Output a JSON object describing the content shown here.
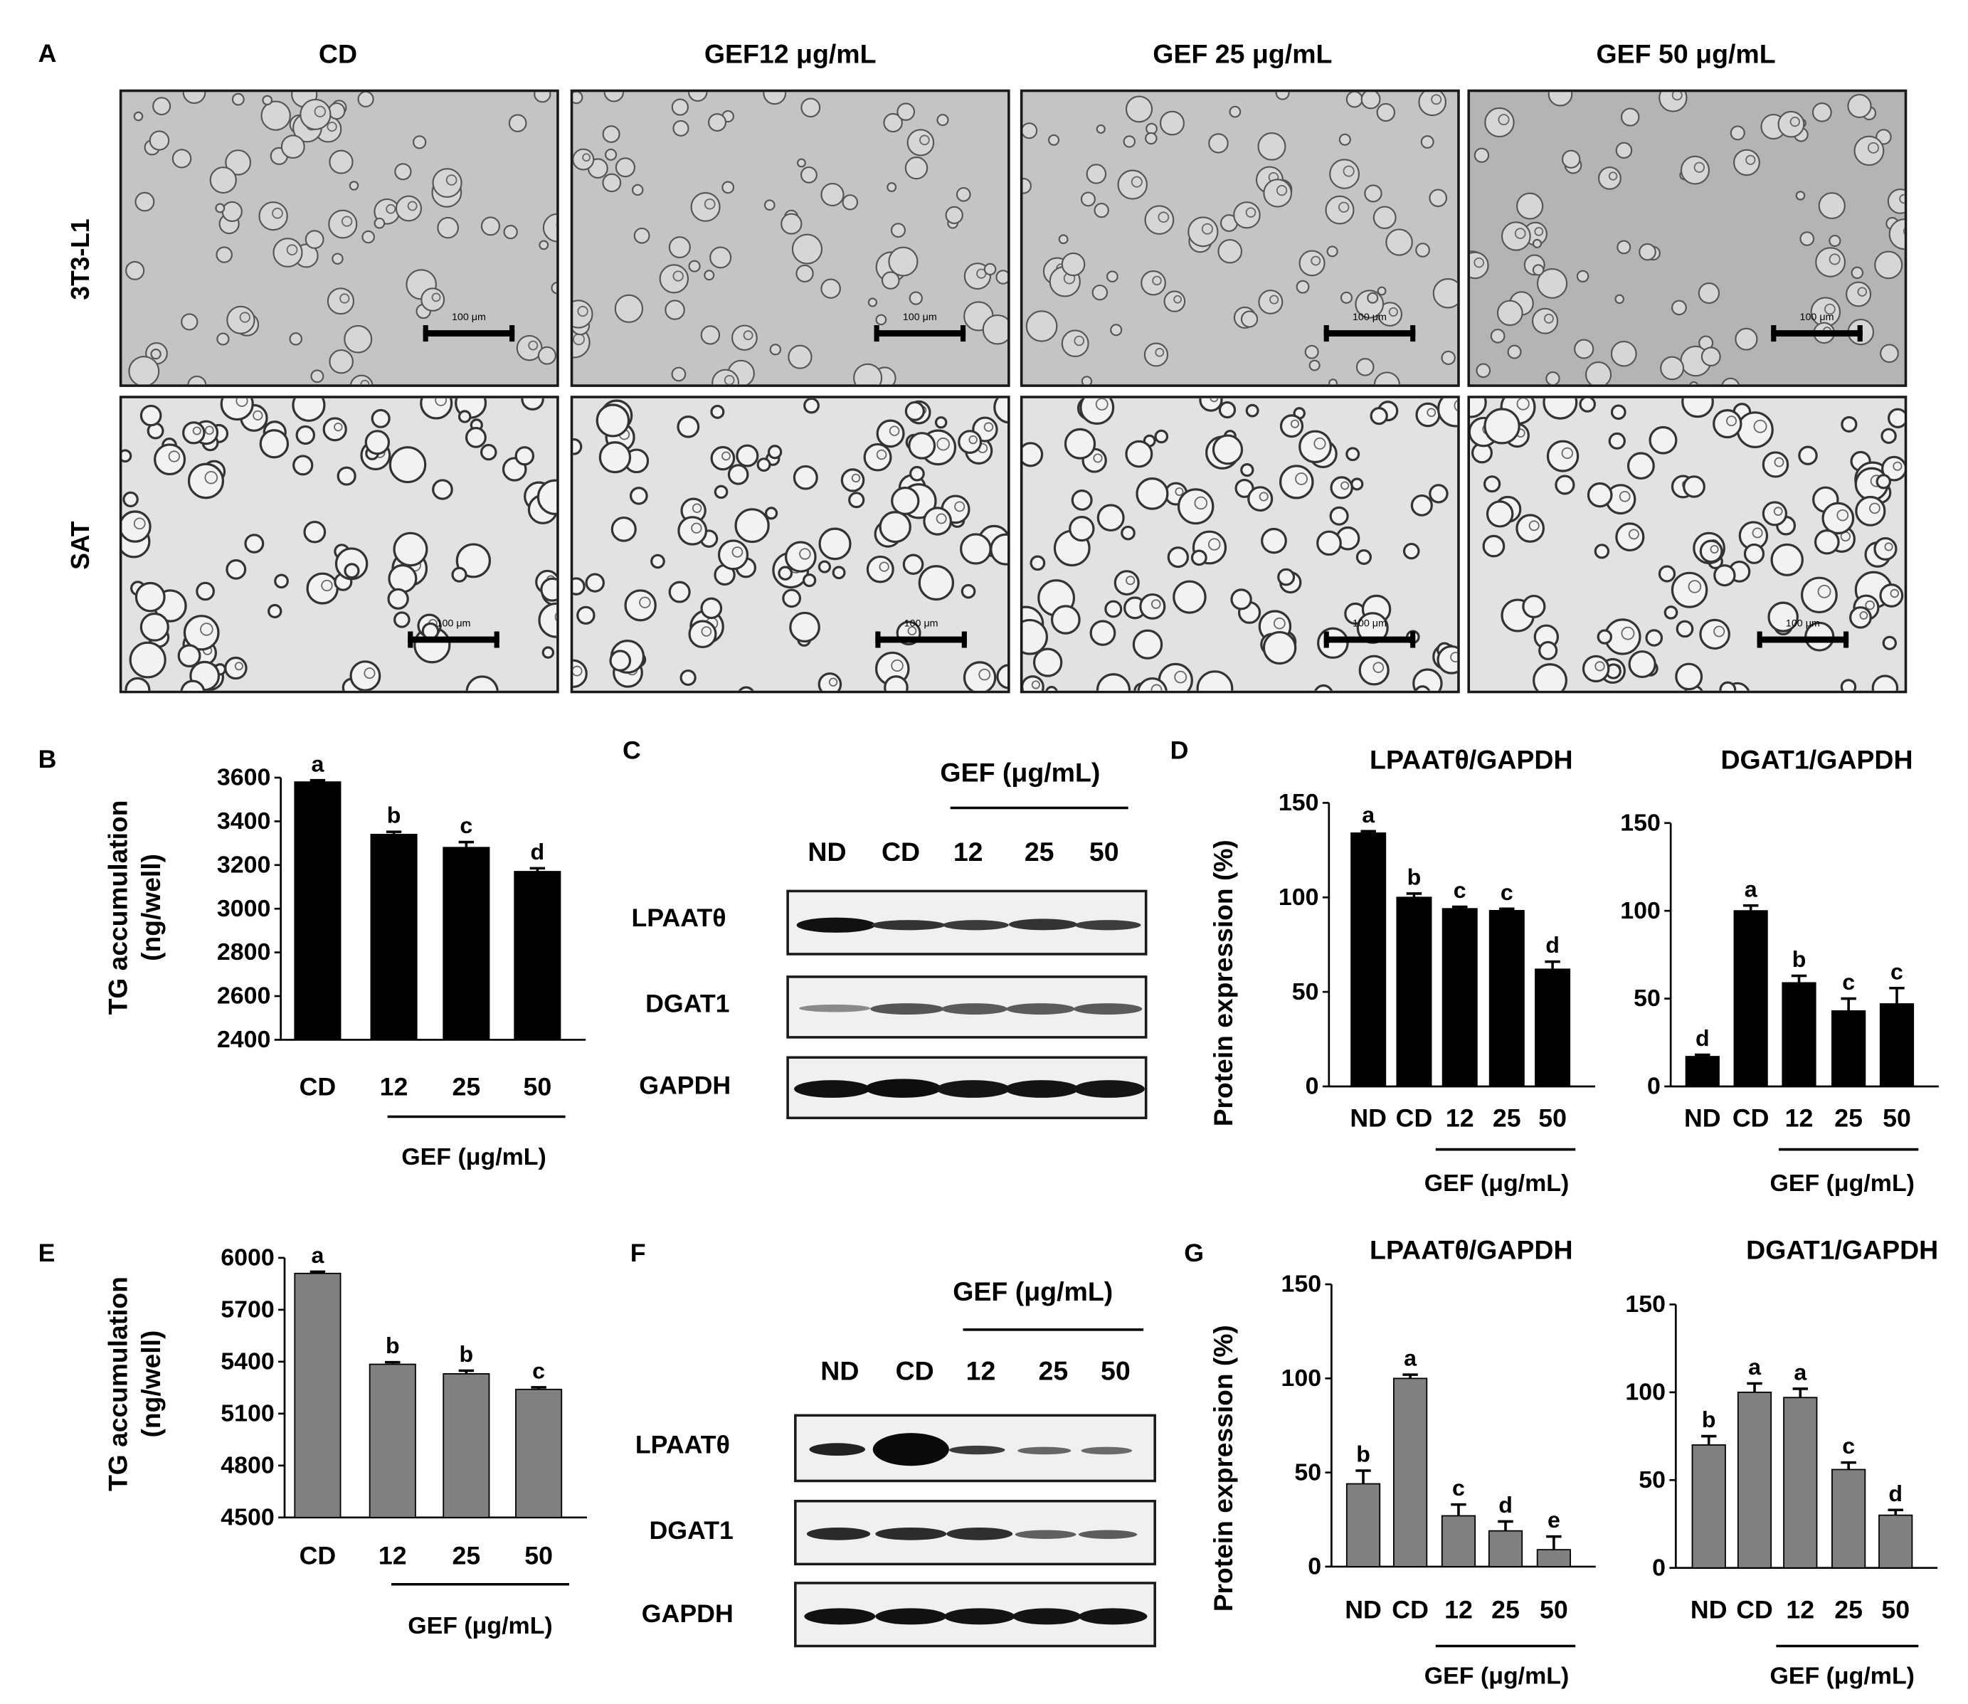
{
  "panel_letters": [
    "A",
    "B",
    "C",
    "D",
    "E",
    "F",
    "G"
  ],
  "panel_a": {
    "column_titles": [
      "CD",
      "GEF12 μg/mL",
      "GEF 25 μg/mL",
      "GEF 50 μg/mL"
    ],
    "row_labels": [
      "3T3-L1",
      "SAT"
    ],
    "scale_bar_label": "100 μm"
  },
  "western_c": {
    "header": "GEF (μg/mL)",
    "lanes": [
      "ND",
      "CD",
      "12",
      "25",
      "50"
    ],
    "blots": [
      "LPAATθ",
      "DGAT1",
      "GAPDH"
    ]
  },
  "western_f": {
    "header": "GEF (μg/mL)",
    "lanes": [
      "ND",
      "CD",
      "12",
      "25",
      "50"
    ],
    "blots": [
      "LPAATθ",
      "DGAT1",
      "GAPDH"
    ]
  },
  "colors": {
    "bar_black": "#000000",
    "bar_gray": "#808080",
    "background": "#ffffff"
  },
  "chart_data": [
    {
      "id": "B",
      "type": "bar",
      "title": "",
      "ylabel": "TG accumulation (ng/well)",
      "categories": [
        "CD",
        "12",
        "25",
        "50"
      ],
      "values": [
        3580,
        3340,
        3280,
        3170
      ],
      "errors": [
        8,
        12,
        25,
        15
      ],
      "letters": [
        "a",
        "b",
        "c",
        "d"
      ],
      "ylim": [
        2400,
        3600
      ],
      "yticks": [
        2400,
        2600,
        2800,
        3000,
        3200,
        3400,
        3600
      ],
      "group_label": "GEF (μg/mL)",
      "color": "#000000"
    },
    {
      "id": "D1",
      "type": "bar",
      "title": "LPAATθ/GAPDH",
      "ylabel": "Protein expression (%)",
      "categories": [
        "ND",
        "CD",
        "12",
        "25",
        "50"
      ],
      "values": [
        134,
        100,
        94,
        93,
        62
      ],
      "errors": [
        1,
        2,
        1,
        1,
        4
      ],
      "letters": [
        "a",
        "b",
        "c",
        "c",
        "d"
      ],
      "ylim": [
        0,
        150
      ],
      "yticks": [
        0,
        50,
        100,
        150
      ],
      "group_label": "GEF (μg/mL)",
      "color": "#000000"
    },
    {
      "id": "D2",
      "type": "bar",
      "title": "DGAT1/GAPDH",
      "ylabel": "",
      "categories": [
        "ND",
        "CD",
        "12",
        "25",
        "50"
      ],
      "values": [
        17,
        100,
        59,
        43,
        47
      ],
      "errors": [
        1,
        3,
        4,
        7,
        9
      ],
      "letters": [
        "d",
        "a",
        "b",
        "c",
        "c"
      ],
      "ylim": [
        0,
        150
      ],
      "yticks": [
        0,
        50,
        100,
        150
      ],
      "group_label": "GEF (μg/mL)",
      "color": "#000000"
    },
    {
      "id": "E",
      "type": "bar",
      "title": "",
      "ylabel": "TG accumulation (ng/well)",
      "categories": [
        "CD",
        "12",
        "25",
        "50"
      ],
      "values": [
        5910,
        5385,
        5330,
        5240
      ],
      "errors": [
        10,
        12,
        18,
        12
      ],
      "letters": [
        "a",
        "b",
        "b",
        "c"
      ],
      "ylim": [
        4500,
        6000
      ],
      "yticks": [
        4500,
        4800,
        5100,
        5400,
        5700,
        6000
      ],
      "group_label": "GEF (μg/mL)",
      "color": "#808080"
    },
    {
      "id": "G1",
      "type": "bar",
      "title": "LPAATθ/GAPDH",
      "ylabel": "Protein expression (%)",
      "categories": [
        "ND",
        "CD",
        "12",
        "25",
        "50"
      ],
      "values": [
        44,
        100,
        27,
        19,
        9
      ],
      "errors": [
        7,
        2,
        6,
        5,
        7
      ],
      "letters": [
        "b",
        "a",
        "c",
        "d",
        "e"
      ],
      "ylim": [
        0,
        150
      ],
      "yticks": [
        0,
        50,
        100,
        150
      ],
      "group_label": "GEF (μg/mL)",
      "color": "#808080"
    },
    {
      "id": "G2",
      "type": "bar",
      "title": "DGAT1/GAPDH",
      "ylabel": "",
      "categories": [
        "ND",
        "CD",
        "12",
        "25",
        "50"
      ],
      "values": [
        70,
        100,
        97,
        56,
        30
      ],
      "errors": [
        5,
        5,
        5,
        4,
        3
      ],
      "letters": [
        "b",
        "a",
        "a",
        "c",
        "d"
      ],
      "ylim": [
        0,
        150
      ],
      "yticks": [
        0,
        50,
        100,
        150
      ],
      "group_label": "GEF (μg/mL)",
      "color": "#808080"
    }
  ]
}
